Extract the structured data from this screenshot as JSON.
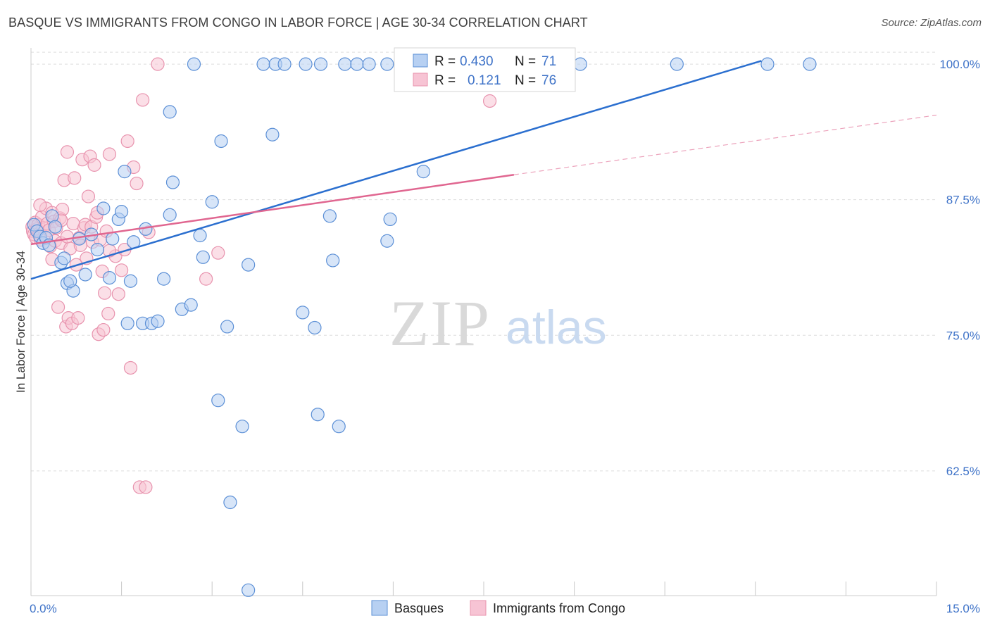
{
  "title": "BASQUE VS IMMIGRANTS FROM CONGO IN LABOR FORCE | AGE 30-34 CORRELATION CHART",
  "source": "Source: ZipAtlas.com",
  "watermark": {
    "zip": "ZIP",
    "atlas": "atlas"
  },
  "colors": {
    "blue": "#5b8fd6",
    "blue_fill": "#b7d0f2",
    "blue_line": "#2b6fcf",
    "pink": "#e893ae",
    "pink_fill": "#f7c4d4",
    "pink_line": "#e06690",
    "tick_label": "#3f73c8",
    "grid": "#dddddd"
  },
  "chart_data": {
    "type": "scatter",
    "title": "BASQUE VS IMMIGRANTS FROM CONGO IN LABOR FORCE | AGE 30-34 CORRELATION CHART",
    "xlabel": "",
    "ylabel": "In Labor Force | Age 30-34",
    "xlim": [
      0.0,
      15.0
    ],
    "ylim": [
      51.0,
      101.5
    ],
    "x_tick_labels": [
      "0.0%",
      "15.0%"
    ],
    "y_ticks": [
      62.5,
      75.0,
      87.5,
      100.0
    ],
    "y_tick_labels": [
      "62.5%",
      "75.0%",
      "87.5%",
      "100.0%"
    ],
    "grid": true,
    "legend": {
      "placement": "top-center",
      "rows": [
        {
          "r_label": "R = ",
          "r_value": "0.430",
          "n_label": "N = ",
          "n_value": "71"
        },
        {
          "r_label": "R = ",
          "r_value": "0.121",
          "n_label": "N = ",
          "n_value": "76"
        }
      ]
    },
    "series": [
      {
        "name": "Basques",
        "color": "blue",
        "trend": {
          "x0": 0.0,
          "y0": 80.2,
          "x1": 12.1,
          "y1": 100.3,
          "dashed_to": null
        },
        "points": [
          [
            0.05,
            85.2
          ],
          [
            0.1,
            84.6
          ],
          [
            0.15,
            84.1
          ],
          [
            0.2,
            83.5
          ],
          [
            0.25,
            84.0
          ],
          [
            0.3,
            83.3
          ],
          [
            0.35,
            86.0
          ],
          [
            0.4,
            85.0
          ],
          [
            0.5,
            81.7
          ],
          [
            0.55,
            82.1
          ],
          [
            0.6,
            79.8
          ],
          [
            0.7,
            79.1
          ],
          [
            0.8,
            83.9
          ],
          [
            0.9,
            80.6
          ],
          [
            1.0,
            84.3
          ],
          [
            1.1,
            82.9
          ],
          [
            1.2,
            86.7
          ],
          [
            1.3,
            80.3
          ],
          [
            1.35,
            83.9
          ],
          [
            1.45,
            85.7
          ],
          [
            1.5,
            86.4
          ],
          [
            1.55,
            90.1
          ],
          [
            1.6,
            76.1
          ],
          [
            1.65,
            80.0
          ],
          [
            1.7,
            83.6
          ],
          [
            1.85,
            76.1
          ],
          [
            1.9,
            84.8
          ],
          [
            2.0,
            76.1
          ],
          [
            2.1,
            76.3
          ],
          [
            2.2,
            80.2
          ],
          [
            2.3,
            86.1
          ],
          [
            2.3,
            95.6
          ],
          [
            2.35,
            89.1
          ],
          [
            2.5,
            77.4
          ],
          [
            2.65,
            77.8
          ],
          [
            2.7,
            100.0
          ],
          [
            2.8,
            84.2
          ],
          [
            2.85,
            82.2
          ],
          [
            3.0,
            87.3
          ],
          [
            3.1,
            69.0
          ],
          [
            3.15,
            92.9
          ],
          [
            3.25,
            75.8
          ],
          [
            3.3,
            59.6
          ],
          [
            3.5,
            66.6
          ],
          [
            3.6,
            81.5
          ],
          [
            3.85,
            100.0
          ],
          [
            4.0,
            93.5
          ],
          [
            4.05,
            100.0
          ],
          [
            4.2,
            100.0
          ],
          [
            4.5,
            77.1
          ],
          [
            4.55,
            100.0
          ],
          [
            4.7,
            75.7
          ],
          [
            4.75,
            67.7
          ],
          [
            4.8,
            100.0
          ],
          [
            4.95,
            86.0
          ],
          [
            5.0,
            81.9
          ],
          [
            5.1,
            66.6
          ],
          [
            5.2,
            100.0
          ],
          [
            5.4,
            100.0
          ],
          [
            5.6,
            100.0
          ],
          [
            5.9,
            100.0
          ],
          [
            5.9,
            83.7
          ],
          [
            5.95,
            85.7
          ],
          [
            6.5,
            90.1
          ],
          [
            7.4,
            100.0
          ],
          [
            9.1,
            100.0
          ],
          [
            10.7,
            100.0
          ],
          [
            12.2,
            100.0
          ],
          [
            12.9,
            100.0
          ],
          [
            3.6,
            51.5
          ],
          [
            0.65,
            80.0
          ]
        ]
      },
      {
        "name": "Immigrants from Congo",
        "color": "pink",
        "trend": {
          "x0": 0.0,
          "y0": 83.4,
          "x1": 8.0,
          "y1": 89.8,
          "dashed_to": {
            "x": 15.0,
            "y": 95.3
          }
        },
        "points": [
          [
            0.02,
            85.0
          ],
          [
            0.03,
            84.6
          ],
          [
            0.05,
            84.3
          ],
          [
            0.07,
            85.4
          ],
          [
            0.08,
            84.0
          ],
          [
            0.1,
            84.8
          ],
          [
            0.12,
            85.2
          ],
          [
            0.14,
            84.4
          ],
          [
            0.16,
            83.8
          ],
          [
            0.18,
            85.9
          ],
          [
            0.2,
            84.9
          ],
          [
            0.22,
            84.1
          ],
          [
            0.25,
            86.7
          ],
          [
            0.27,
            85.3
          ],
          [
            0.3,
            84.7
          ],
          [
            0.32,
            83.2
          ],
          [
            0.35,
            86.3
          ],
          [
            0.38,
            85.5
          ],
          [
            0.4,
            83.7
          ],
          [
            0.42,
            84.9
          ],
          [
            0.45,
            77.6
          ],
          [
            0.48,
            85.8
          ],
          [
            0.5,
            83.5
          ],
          [
            0.52,
            86.6
          ],
          [
            0.55,
            89.3
          ],
          [
            0.58,
            75.8
          ],
          [
            0.6,
            91.9
          ],
          [
            0.62,
            76.6
          ],
          [
            0.65,
            83.0
          ],
          [
            0.68,
            76.1
          ],
          [
            0.7,
            85.3
          ],
          [
            0.72,
            89.5
          ],
          [
            0.75,
            81.5
          ],
          [
            0.78,
            76.6
          ],
          [
            0.8,
            84.0
          ],
          [
            0.82,
            83.3
          ],
          [
            0.85,
            91.2
          ],
          [
            0.88,
            84.9
          ],
          [
            0.9,
            85.2
          ],
          [
            0.92,
            82.1
          ],
          [
            0.95,
            87.8
          ],
          [
            0.98,
            91.5
          ],
          [
            1.0,
            85.0
          ],
          [
            1.02,
            83.6
          ],
          [
            1.05,
            90.7
          ],
          [
            1.08,
            85.9
          ],
          [
            1.1,
            86.3
          ],
          [
            1.12,
            75.1
          ],
          [
            1.15,
            83.8
          ],
          [
            1.18,
            80.9
          ],
          [
            1.2,
            75.5
          ],
          [
            1.22,
            78.9
          ],
          [
            1.25,
            84.6
          ],
          [
            1.28,
            77.0
          ],
          [
            1.3,
            91.7
          ],
          [
            1.4,
            82.3
          ],
          [
            1.45,
            78.8
          ],
          [
            1.5,
            81.0
          ],
          [
            1.55,
            82.9
          ],
          [
            1.6,
            92.9
          ],
          [
            1.65,
            72.0
          ],
          [
            1.7,
            90.5
          ],
          [
            1.75,
            89.0
          ],
          [
            1.8,
            61.0
          ],
          [
            1.85,
            96.7
          ],
          [
            1.9,
            61.0
          ],
          [
            1.95,
            84.5
          ],
          [
            2.1,
            100.0
          ],
          [
            2.9,
            80.2
          ],
          [
            3.1,
            82.6
          ],
          [
            7.6,
            96.6
          ],
          [
            0.35,
            82.0
          ],
          [
            0.5,
            85.6
          ],
          [
            0.6,
            84.1
          ],
          [
            1.3,
            82.8
          ],
          [
            0.15,
            87.0
          ]
        ]
      }
    ]
  },
  "bottom_legend": [
    {
      "label": "Basques",
      "color": "blue"
    },
    {
      "label": "Immigrants from Congo",
      "color": "pink"
    }
  ]
}
